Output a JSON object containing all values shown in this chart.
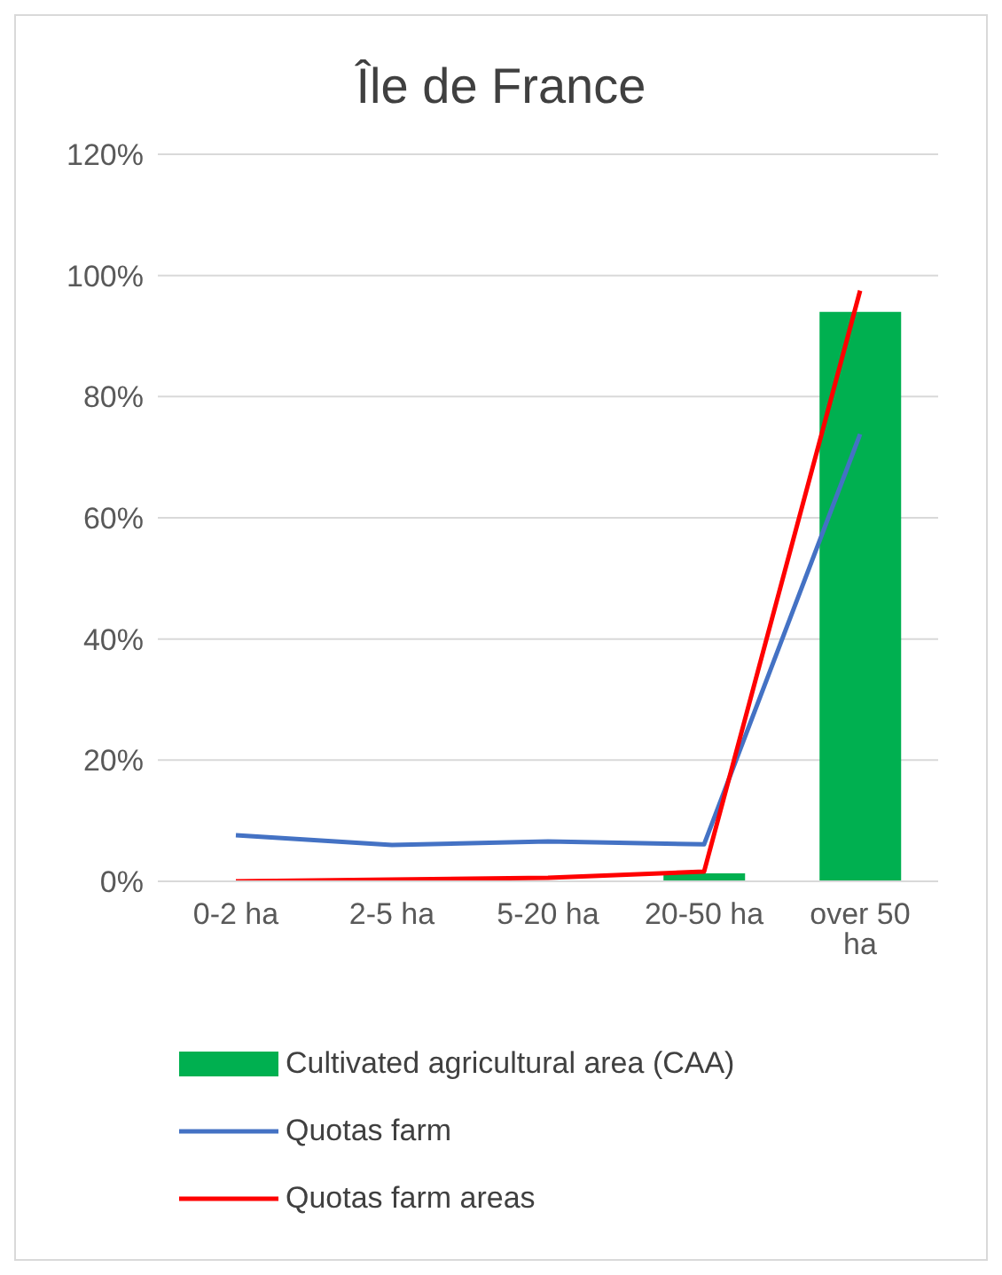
{
  "chart_data": {
    "type": "bar",
    "title": "Île de France",
    "categories": [
      "0-2 ha",
      "2-5 ha",
      "5-20 ha",
      "20-50 ha",
      "over 50 ha"
    ],
    "series": [
      {
        "name": "Cultivated agricultural area (CAA)",
        "color": "#00b050",
        "values": [
          null,
          null,
          null,
          1.3,
          94
        ]
      },
      {
        "name": "Quotas farm",
        "type": "line",
        "color": "#4472c4",
        "values": [
          7.6,
          6,
          6.6,
          6.1,
          73.8
        ]
      },
      {
        "name": "Quotas farm areas",
        "type": "line",
        "color": "#ff0000",
        "values": [
          0,
          0.3,
          0.6,
          1.6,
          97.5
        ]
      }
    ],
    "ylim": [
      0,
      120
    ],
    "yticks": [
      {
        "value": 0,
        "label": "0%"
      },
      {
        "value": 20,
        "label": "20%"
      },
      {
        "value": 40,
        "label": "40%"
      },
      {
        "value": 60,
        "label": "60%"
      },
      {
        "value": 80,
        "label": "80%"
      },
      {
        "value": 100,
        "label": "100%"
      },
      {
        "value": 120,
        "label": "120%"
      }
    ],
    "grid": "y",
    "legend": "bottom",
    "marker": "none"
  }
}
